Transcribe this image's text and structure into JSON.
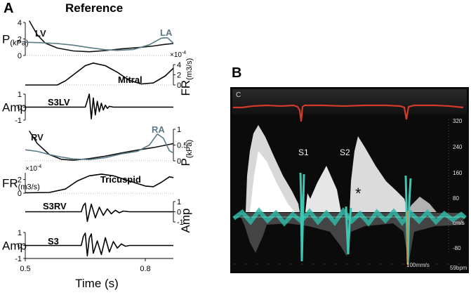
{
  "panel_a": {
    "letter": "A",
    "title": "Reference",
    "x_axis": {
      "label": "Time (s)",
      "ticks": [
        "0.5",
        "0.8"
      ]
    },
    "subplots": [
      {
        "id": "pressure_left",
        "ylabel_main": "P",
        "ylabel_sub": "(kPa)",
        "ylabel_side": "left",
        "ticks": [
          "4",
          "2",
          "0"
        ],
        "curve_labels": [
          {
            "text": "LV",
            "color": "#1a1a1a"
          },
          {
            "text": "LA",
            "color": "#5b7a87"
          }
        ]
      },
      {
        "id": "flow_mitral",
        "ylabel_main": "FR",
        "ylabel_sub": "(m3/s)",
        "ylabel_side": "right",
        "exponent": "×10",
        "exponent_power": "-4",
        "ticks": [
          "4",
          "2",
          "0"
        ],
        "curve_labels": [
          {
            "text": "Mitral",
            "color": "#000000"
          }
        ]
      },
      {
        "id": "s3lv",
        "ylabel_main": "Amp",
        "ylabel_side": "left",
        "ticks": [
          "1",
          "0",
          "-1"
        ],
        "curve_labels": [
          {
            "text": "S3LV",
            "color": "#000000"
          }
        ]
      },
      {
        "id": "pressure_right",
        "ylabel_main": "P",
        "ylabel_sub": "(kPa)",
        "ylabel_side": "right",
        "ticks": [
          "1",
          "0.5",
          "0"
        ],
        "curve_labels": [
          {
            "text": "RV",
            "color": "#1a1a1a"
          },
          {
            "text": "RA",
            "color": "#5b7a87"
          }
        ]
      },
      {
        "id": "flow_tricuspid",
        "ylabel_main": "FR",
        "ylabel_sub": "(m3/s)",
        "ylabel_side": "left",
        "exponent": "×10",
        "exponent_power": "-4",
        "ticks": [
          "2",
          "0"
        ],
        "curve_labels": [
          {
            "text": "Tricuspid",
            "color": "#000000"
          }
        ]
      },
      {
        "id": "s3rv",
        "ylabel_main": "Amp",
        "ylabel_side": "right",
        "ticks": [
          "1",
          "0",
          "-1"
        ],
        "curve_labels": [
          {
            "text": "S3RV",
            "color": "#000000"
          }
        ]
      },
      {
        "id": "s3",
        "ylabel_main": "Amp",
        "ylabel_side": "left",
        "ticks": [
          "1",
          "0",
          "-1"
        ],
        "curve_labels": [
          {
            "text": "S3",
            "color": "#000000"
          }
        ]
      }
    ]
  },
  "panel_b": {
    "letter": "B",
    "corner_label": "C",
    "right_scale": [
      "320",
      "240",
      "160",
      "80",
      "cm/s",
      "-80"
    ],
    "annotations": [
      "S1",
      "S2",
      "*"
    ],
    "bottom_left": "100mm/s",
    "bottom_right": "59bpm"
  },
  "chart_data": {
    "type": "line",
    "x": {
      "label": "Time (s)",
      "range": [
        0.5,
        0.87
      ],
      "ticks": [
        0.5,
        0.8
      ]
    },
    "subplots": [
      {
        "id": "pressure_left",
        "ylabel": "P (kPa)",
        "ylim": [
          0,
          4
        ],
        "series": [
          {
            "name": "LV",
            "color": "#111111",
            "points": [
              [
                0.51,
                4.2
              ],
              [
                0.53,
                2.5
              ],
              [
                0.55,
                1.5
              ],
              [
                0.58,
                0.9
              ],
              [
                0.62,
                0.55
              ],
              [
                0.66,
                0.45
              ],
              [
                0.7,
                0.6
              ],
              [
                0.74,
                0.8
              ],
              [
                0.78,
                0.95
              ],
              [
                0.82,
                1.15
              ],
              [
                0.85,
                1.35
              ],
              [
                0.87,
                1.45
              ]
            ]
          },
          {
            "name": "LA",
            "color": "#5b7a87",
            "points": [
              [
                0.5,
                1.6
              ],
              [
                0.54,
                1.55
              ],
              [
                0.58,
                1.45
              ],
              [
                0.62,
                1.25
              ],
              [
                0.66,
                0.95
              ],
              [
                0.7,
                0.7
              ],
              [
                0.73,
                0.62
              ],
              [
                0.77,
                0.72
              ],
              [
                0.81,
                1.3
              ],
              [
                0.84,
                2.1
              ],
              [
                0.855,
                2.15
              ],
              [
                0.87,
                1.5
              ]
            ]
          }
        ]
      },
      {
        "id": "flow_mitral",
        "ylabel": "FR (m3/s) ×10^-4",
        "ylim": [
          0,
          4
        ],
        "series": [
          {
            "name": "Mitral",
            "color": "#000000",
            "points": [
              [
                0.5,
                0.0
              ],
              [
                0.58,
                0.0
              ],
              [
                0.6,
                0.8
              ],
              [
                0.63,
                2.6
              ],
              [
                0.65,
                3.8
              ],
              [
                0.67,
                4.3
              ],
              [
                0.7,
                3.8
              ],
              [
                0.73,
                2.5
              ],
              [
                0.76,
                0.9
              ],
              [
                0.79,
                0.2
              ],
              [
                0.82,
                0.4
              ],
              [
                0.85,
                1.8
              ],
              [
                0.87,
                3.3
              ]
            ]
          }
        ]
      },
      {
        "id": "s3lv",
        "ylabel": "Amp",
        "ylim": [
          -1,
          1
        ],
        "series": [
          {
            "name": "S3LV",
            "color": "#000000",
            "points": [
              [
                0.5,
                0
              ],
              [
                0.65,
                0
              ],
              [
                0.655,
                0.5
              ],
              [
                0.66,
                1.0
              ],
              [
                0.665,
                -0.9
              ],
              [
                0.67,
                0.7
              ],
              [
                0.675,
                -0.6
              ],
              [
                0.68,
                0.45
              ],
              [
                0.685,
                -0.35
              ],
              [
                0.69,
                0.3
              ],
              [
                0.695,
                -0.22
              ],
              [
                0.7,
                0.15
              ],
              [
                0.705,
                -0.1
              ],
              [
                0.71,
                0.06
              ],
              [
                0.72,
                0
              ],
              [
                0.87,
                0
              ]
            ]
          }
        ]
      },
      {
        "id": "pressure_right",
        "ylabel": "P (kPa)",
        "ylim": [
          0,
          1
        ],
        "series": [
          {
            "name": "RV",
            "color": "#111111",
            "points": [
              [
                0.51,
                0.95
              ],
              [
                0.53,
                0.55
              ],
              [
                0.56,
                0.2
              ],
              [
                0.59,
                0.05
              ],
              [
                0.62,
                0.02
              ],
              [
                0.66,
                0.07
              ],
              [
                0.7,
                0.15
              ],
              [
                0.74,
                0.25
              ],
              [
                0.78,
                0.34
              ],
              [
                0.82,
                0.42
              ],
              [
                0.86,
                0.52
              ],
              [
                0.87,
                0.55
              ]
            ]
          },
          {
            "name": "RA",
            "color": "#5b7a87",
            "points": [
              [
                0.5,
                0.35
              ],
              [
                0.53,
                0.3
              ],
              [
                0.56,
                0.2
              ],
              [
                0.59,
                0.12
              ],
              [
                0.62,
                0.06
              ],
              [
                0.66,
                0.04
              ],
              [
                0.7,
                0.1
              ],
              [
                0.74,
                0.22
              ],
              [
                0.78,
                0.3
              ],
              [
                0.81,
                0.5
              ],
              [
                0.83,
                0.85
              ],
              [
                0.845,
                0.72
              ],
              [
                0.86,
                0.32
              ],
              [
                0.87,
                0.25
              ]
            ]
          }
        ]
      },
      {
        "id": "flow_tricuspid",
        "ylabel": "FR (m3/s) ×10^-4",
        "ylim": [
          0,
          3
        ],
        "series": [
          {
            "name": "Tricuspid",
            "color": "#000000",
            "points": [
              [
                0.5,
                0.05
              ],
              [
                0.56,
                0.1
              ],
              [
                0.6,
                0.6
              ],
              [
                0.63,
                1.8
              ],
              [
                0.66,
                2.55
              ],
              [
                0.69,
                2.8
              ],
              [
                0.72,
                2.55
              ],
              [
                0.76,
                1.8
              ],
              [
                0.8,
                1.05
              ],
              [
                0.82,
                0.95
              ],
              [
                0.84,
                1.6
              ],
              [
                0.86,
                2.4
              ],
              [
                0.87,
                2.3
              ]
            ]
          }
        ]
      },
      {
        "id": "s3rv",
        "ylabel": "Amp",
        "ylim": [
          -1,
          1
        ],
        "series": [
          {
            "name": "S3RV",
            "color": "#000000",
            "points": [
              [
                0.5,
                0
              ],
              [
                0.64,
                0
              ],
              [
                0.645,
                0.6
              ],
              [
                0.65,
                0.85
              ],
              [
                0.655,
                -0.95
              ],
              [
                0.665,
                0.75
              ],
              [
                0.675,
                -0.6
              ],
              [
                0.685,
                0.45
              ],
              [
                0.695,
                -0.35
              ],
              [
                0.705,
                0.28
              ],
              [
                0.715,
                -0.2
              ],
              [
                0.725,
                0.15
              ],
              [
                0.735,
                -0.1
              ],
              [
                0.745,
                0.07
              ],
              [
                0.76,
                0
              ],
              [
                0.87,
                0
              ]
            ]
          }
        ]
      },
      {
        "id": "s3",
        "ylabel": "Amp",
        "ylim": [
          -1,
          1
        ],
        "series": [
          {
            "name": "S3",
            "color": "#000000",
            "points": [
              [
                0.5,
                0
              ],
              [
                0.64,
                0
              ],
              [
                0.645,
                0.7
              ],
              [
                0.65,
                0.95
              ],
              [
                0.655,
                -0.8
              ],
              [
                0.66,
                0.55
              ],
              [
                0.665,
                0.9
              ],
              [
                0.67,
                -0.6
              ],
              [
                0.68,
                0.35
              ],
              [
                0.69,
                -0.7
              ],
              [
                0.7,
                0.6
              ],
              [
                0.71,
                -0.5
              ],
              [
                0.72,
                0.3
              ],
              [
                0.73,
                -0.2
              ],
              [
                0.74,
                0.12
              ],
              [
                0.75,
                -0.06
              ],
              [
                0.76,
                0
              ],
              [
                0.87,
                0
              ]
            ]
          }
        ]
      }
    ]
  }
}
